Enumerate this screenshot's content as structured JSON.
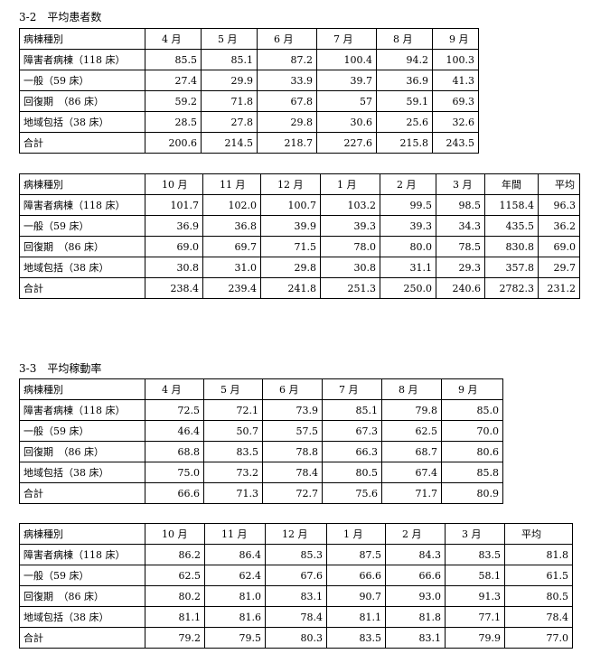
{
  "section1": {
    "title": "3-2　平均患者数",
    "table_a": {
      "headers": [
        "病棟種別",
        "4 月",
        "5 月",
        "6 月",
        "7 月",
        "8 月",
        "9 月"
      ],
      "rows": [
        [
          "障害者病棟（118 床）",
          "85.5",
          "85.1",
          "87.2",
          "100.4",
          "94.2",
          "100.3"
        ],
        [
          "一般（59 床）",
          "27.4",
          "29.9",
          "33.9",
          "39.7",
          "36.9",
          "41.3"
        ],
        [
          "回復期　（86 床）",
          "59.2",
          "71.8",
          "67.8",
          "57",
          "59.1",
          "69.3"
        ],
        [
          "地域包括（38 床）",
          "28.5",
          "27.8",
          "29.8",
          "30.6",
          "25.6",
          "32.6"
        ],
        [
          "合計",
          "200.6",
          "214.5",
          "218.7",
          "227.6",
          "215.8",
          "243.5"
        ]
      ]
    },
    "table_b": {
      "headers": [
        "病棟種別",
        "10 月",
        "11 月",
        "12 月",
        "1 月",
        "2 月",
        "3 月",
        "年間",
        "平均"
      ],
      "rows": [
        [
          "障害者病棟（118 床）",
          "101.7",
          "102.0",
          "100.7",
          "103.2",
          "99.5",
          "98.5",
          "1158.4",
          "96.3"
        ],
        [
          "一般（59 床）",
          "36.9",
          "36.8",
          "39.9",
          "39.3",
          "39.3",
          "34.3",
          "435.5",
          "36.2"
        ],
        [
          "回復期　（86 床）",
          "69.0",
          "69.7",
          "71.5",
          "78.0",
          "80.0",
          "78.5",
          "830.8",
          "69.0"
        ],
        [
          "地域包括（38 床）",
          "30.8",
          "31.0",
          "29.8",
          "30.8",
          "31.1",
          "29.3",
          "357.8",
          "29.7"
        ],
        [
          "合計",
          "238.4",
          "239.4",
          "241.8",
          "251.3",
          "250.0",
          "240.6",
          "2782.3",
          "231.2"
        ]
      ]
    }
  },
  "section2": {
    "title": "3-3　平均稼動率",
    "table_a": {
      "headers": [
        "病棟種別",
        "4 月",
        "5 月",
        "6 月",
        "7 月",
        "8 月",
        "9 月"
      ],
      "rows": [
        [
          "障害者病棟（118 床）",
          "72.5",
          "72.1",
          "73.9",
          "85.1",
          "79.8",
          "85.0"
        ],
        [
          "一般（59 床）",
          "46.4",
          "50.7",
          "57.5",
          "67.3",
          "62.5",
          "70.0"
        ],
        [
          "回復期　（86 床）",
          "68.8",
          "83.5",
          "78.8",
          "66.3",
          "68.7",
          "80.6"
        ],
        [
          "地域包括（38 床）",
          "75.0",
          "73.2",
          "78.4",
          "80.5",
          "67.4",
          "85.8"
        ],
        [
          "合計",
          "66.6",
          "71.3",
          "72.7",
          "75.6",
          "71.7",
          "80.9"
        ]
      ]
    },
    "table_b": {
      "headers": [
        "病棟種別",
        "10 月",
        "11 月",
        "12 月",
        "1 月",
        "2 月",
        "3 月",
        "平均"
      ],
      "rows": [
        [
          "障害者病棟（118 床）",
          "86.2",
          "86.4",
          "85.3",
          "87.5",
          "84.3",
          "83.5",
          "81.8"
        ],
        [
          "一般（59 床）",
          "62.5",
          "62.4",
          "67.6",
          "66.6",
          "66.6",
          "58.1",
          "61.5"
        ],
        [
          "回復期　（86 床）",
          "80.2",
          "81.0",
          "83.1",
          "90.7",
          "93.0",
          "91.3",
          "80.5"
        ],
        [
          "地域包括（38 床）",
          "81.1",
          "81.6",
          "78.4",
          "81.1",
          "81.8",
          "77.1",
          "78.4"
        ],
        [
          "合計",
          "79.2",
          "79.5",
          "80.3",
          "83.5",
          "83.1",
          "79.9",
          "77.0"
        ]
      ]
    }
  }
}
